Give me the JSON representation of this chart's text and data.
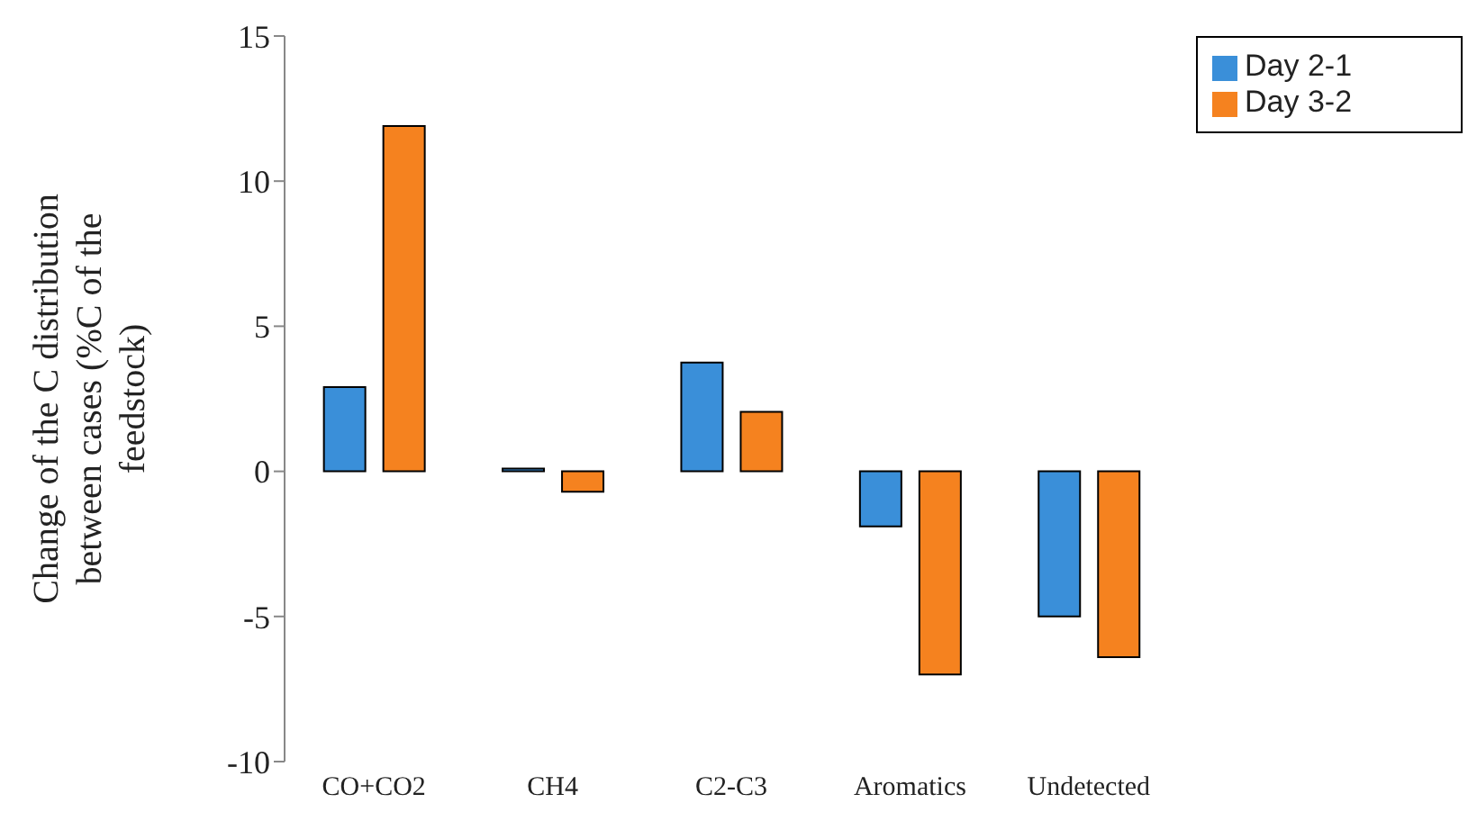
{
  "chart_data": {
    "type": "bar",
    "ylabel": "Change of the C distribution between cases (%C of the feedstock)",
    "categories": [
      "CO+CO2",
      "CH4",
      "C2-C3",
      "Aromatics",
      "Undetected"
    ],
    "series": [
      {
        "name": "Day 2-1",
        "color": "#3a8fd9",
        "values": [
          2.9,
          0.1,
          3.75,
          -1.9,
          -5.0
        ]
      },
      {
        "name": "Day 3-2",
        "color": "#f5821f",
        "values": [
          11.9,
          -0.7,
          2.05,
          -7.0,
          -6.4
        ]
      }
    ],
    "ylim": [
      -10,
      15
    ],
    "yticks": [
      -10,
      -5,
      0,
      5,
      10,
      15
    ],
    "legend": "top right"
  }
}
